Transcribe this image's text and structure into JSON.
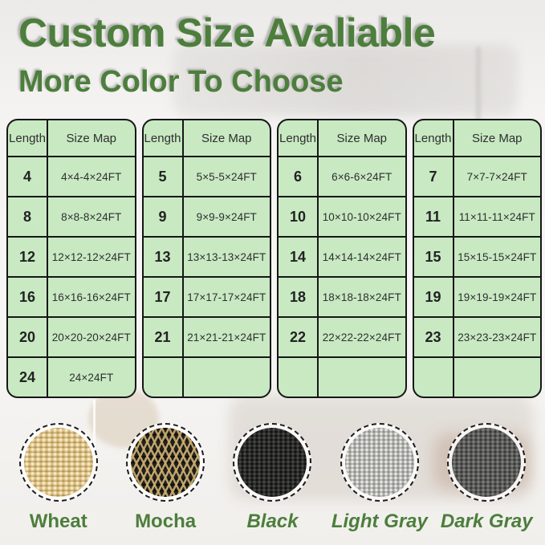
{
  "header": {
    "title": "Custom Size Avaliable",
    "subtitle": "More Color To Choose"
  },
  "theme": {
    "accent_green": "#4c7e3c",
    "table_fill_green": "#c8e9c2",
    "table_border": "#161616",
    "cell_text": "#2f2f2f"
  },
  "tables": [
    {
      "columns": [
        "Length",
        "Size Map"
      ],
      "rows": [
        [
          "4",
          "4×4-4×24FT"
        ],
        [
          "8",
          "8×8-8×24FT"
        ],
        [
          "12",
          "12×12-12×24FT"
        ],
        [
          "16",
          "16×16-16×24FT"
        ],
        [
          "20",
          "20×20-20×24FT"
        ],
        [
          "24",
          "24×24FT"
        ]
      ]
    },
    {
      "columns": [
        "Length",
        "Size Map"
      ],
      "rows": [
        [
          "5",
          "5×5-5×24FT"
        ],
        [
          "9",
          "9×9-9×24FT"
        ],
        [
          "13",
          "13×13-13×24FT"
        ],
        [
          "17",
          "17×17-17×24FT"
        ],
        [
          "21",
          "21×21-21×24FT"
        ],
        [
          "",
          ""
        ]
      ]
    },
    {
      "columns": [
        "Length",
        "Size Map"
      ],
      "rows": [
        [
          "6",
          "6×6-6×24FT"
        ],
        [
          "10",
          "10×10-10×24FT"
        ],
        [
          "14",
          "14×14-14×24FT"
        ],
        [
          "18",
          "18×18-18×24FT"
        ],
        [
          "22",
          "22×22-22×24FT"
        ],
        [
          "",
          ""
        ]
      ]
    },
    {
      "columns": [
        "Length",
        "Size Map"
      ],
      "rows": [
        [
          "7",
          "7×7-7×24FT"
        ],
        [
          "11",
          "11×11-11×24FT"
        ],
        [
          "15",
          "15×15-15×24FT"
        ],
        [
          "19",
          "19×19-19×24FT"
        ],
        [
          "23",
          "23×23-23×24FT"
        ],
        [
          "",
          ""
        ]
      ]
    }
  ],
  "swatches": [
    {
      "name": "Wheat",
      "base_color": "#dcc287",
      "italic": false
    },
    {
      "name": "Mocha",
      "base_color": "#23211d",
      "italic": false
    },
    {
      "name": "Black",
      "base_color": "#2d2d2b",
      "italic": true
    },
    {
      "name": "Light Gray",
      "base_color": "#b4b4b1",
      "italic": true
    },
    {
      "name": "Dark Gray",
      "base_color": "#5d5d5b",
      "italic": true
    }
  ]
}
